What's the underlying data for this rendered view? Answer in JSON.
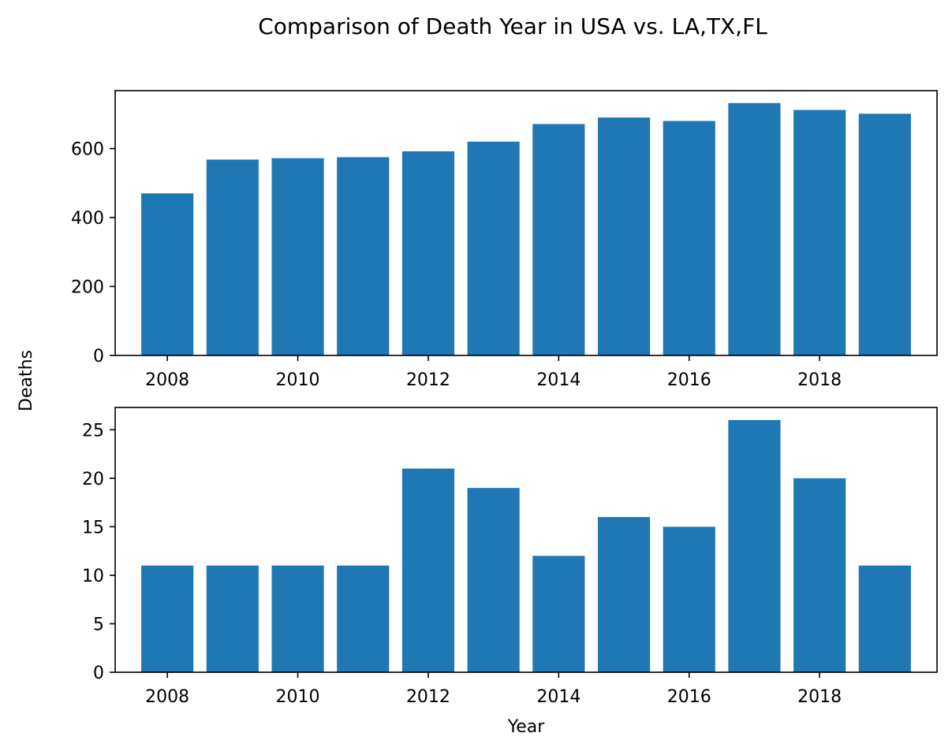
{
  "figure": {
    "title": "Comparison of Death Year in USA vs. LA,TX,FL",
    "shared_ylabel": "Deaths"
  },
  "chart_data": [
    {
      "type": "bar",
      "x": [
        2008,
        2009,
        2010,
        2011,
        2012,
        2013,
        2014,
        2015,
        2016,
        2017,
        2018,
        2019
      ],
      "values": [
        470,
        568,
        572,
        575,
        592,
        620,
        671,
        690,
        680,
        732,
        712,
        701
      ],
      "xlim": [
        2007.2,
        2019.8
      ],
      "ylim": [
        0,
        768
      ],
      "xticks": [
        2008,
        2010,
        2012,
        2014,
        2016,
        2018
      ],
      "yticks": [
        0,
        200,
        400,
        600
      ],
      "xlabel": "",
      "color": "#1f77b4"
    },
    {
      "type": "bar",
      "x": [
        2008,
        2009,
        2010,
        2011,
        2012,
        2013,
        2014,
        2015,
        2016,
        2017,
        2018,
        2019
      ],
      "values": [
        11,
        11,
        11,
        11,
        21,
        19,
        12,
        16,
        15,
        26,
        20,
        11
      ],
      "xlim": [
        2007.2,
        2019.8
      ],
      "ylim": [
        0,
        27.3
      ],
      "xticks": [
        2008,
        2010,
        2012,
        2014,
        2016,
        2018
      ],
      "yticks": [
        0,
        5,
        10,
        15,
        20,
        25
      ],
      "xlabel": "Year",
      "color": "#1f77b4"
    }
  ]
}
